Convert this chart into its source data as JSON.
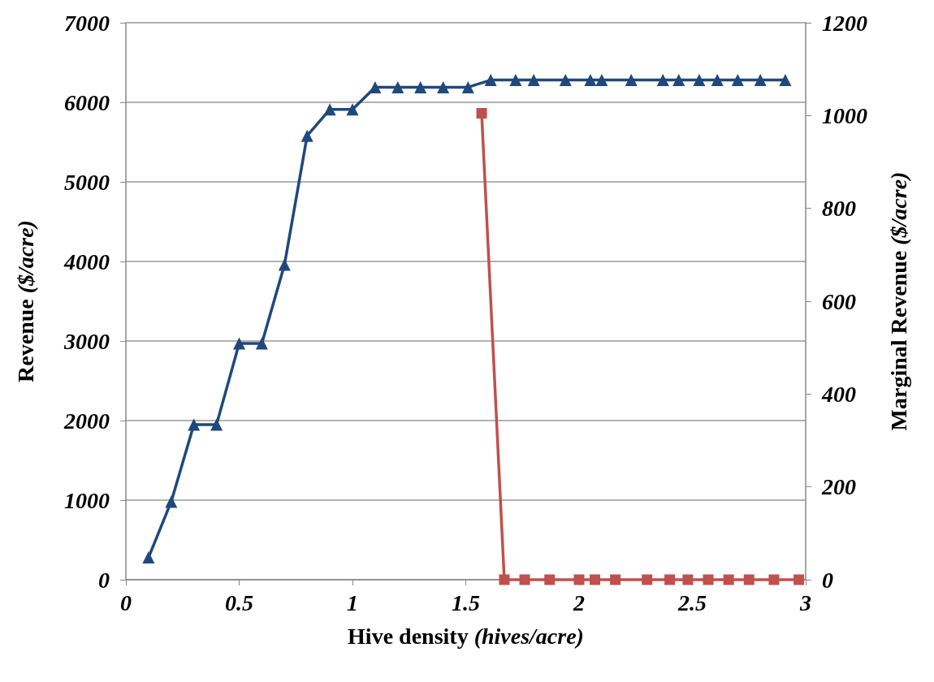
{
  "chart_data": {
    "type": "line",
    "xlabel": "Hive density (hives/acre)",
    "ylabel": "Revenue ($/acre)",
    "y2label": "Marginal Revenue ($/acre)",
    "xlim": [
      0,
      3
    ],
    "xticks": [
      0,
      0.5,
      1,
      1.5,
      2,
      2.5,
      3
    ],
    "ylim": [
      0,
      7000
    ],
    "yticks": [
      0,
      1000,
      2000,
      3000,
      4000,
      5000,
      6000,
      7000
    ],
    "y2lim": [
      0,
      1200
    ],
    "y2ticks": [
      0,
      200,
      400,
      600,
      800,
      1000,
      1200
    ],
    "grid": "y",
    "line_style": "solid",
    "series": [
      {
        "color": "#1f497d",
        "marker": "triangle",
        "x": [
          0.1,
          0.2,
          0.3,
          0.4,
          0.5,
          0.6,
          0.7,
          0.8,
          0.9,
          1.0,
          1.1,
          1.2,
          1.3,
          1.4,
          1.51,
          1.61,
          1.72,
          1.8,
          1.94,
          2.05,
          2.1,
          2.23,
          2.37,
          2.44,
          2.53,
          2.61,
          2.7,
          2.8,
          2.91
        ],
        "values": [
          280,
          980,
          1950,
          1950,
          2970,
          2970,
          3960,
          5580,
          5910,
          5910,
          6190,
          6190,
          6190,
          6190,
          6190,
          6280,
          6280,
          6280,
          6280,
          6280,
          6280,
          6280,
          6280,
          6280,
          6280,
          6280,
          6280,
          6280,
          6280
        ]
      },
      {
        "color": "#c0504d",
        "marker": "square",
        "axis": "y2",
        "x": [
          1.57,
          1.67,
          1.76,
          1.87,
          2.0,
          2.07,
          2.16,
          2.3,
          2.4,
          2.48,
          2.57,
          2.66,
          2.75,
          2.86,
          2.97
        ],
        "values": [
          1005,
          0,
          0,
          0,
          0,
          0,
          0,
          0,
          0,
          0,
          0,
          0,
          0,
          0,
          0
        ]
      }
    ]
  }
}
